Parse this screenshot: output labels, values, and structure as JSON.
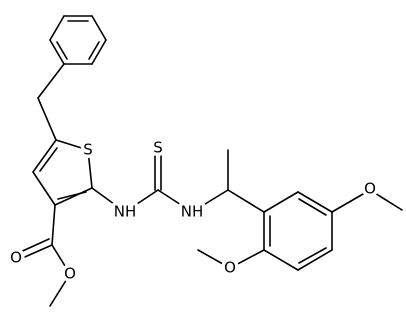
{
  "atoms": [
    {
      "label": "S"
    },
    {
      "label": "S"
    },
    {
      "label": "NH"
    },
    {
      "label": "NH"
    },
    {
      "label": "O"
    },
    {
      "label": "O"
    },
    {
      "label": "O"
    },
    {
      "label": "O"
    }
  ]
}
